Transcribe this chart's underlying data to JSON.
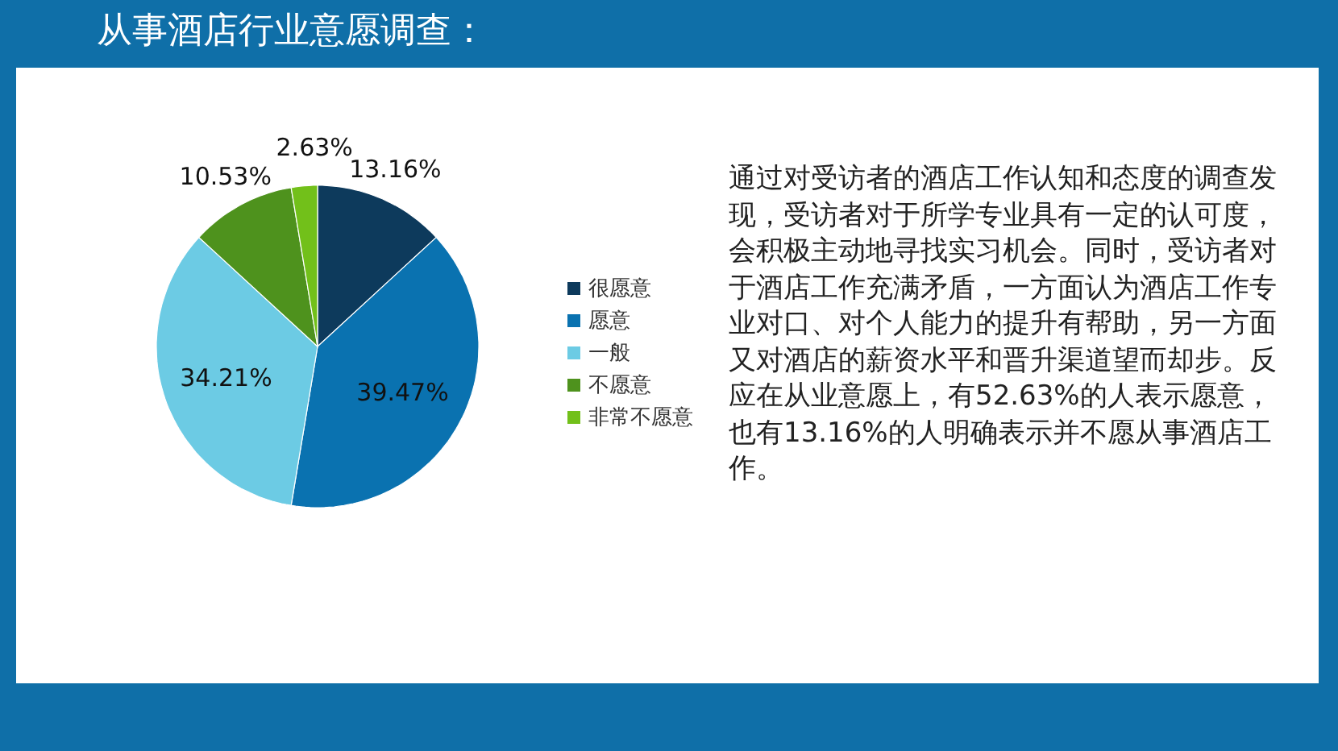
{
  "chart_data": {
    "type": "pie",
    "title": "从事酒店行业意愿调查：",
    "categories": [
      "很愿意",
      "愿意",
      "一般",
      "不愿意",
      "非常不愿意"
    ],
    "values": [
      13.16,
      39.47,
      34.21,
      10.53,
      2.63
    ],
    "colors": [
      "#0d3a5c",
      "#0a72b0",
      "#6ccbe4",
      "#4e921d",
      "#72c01a"
    ],
    "value_labels": [
      "13.16%",
      "39.47%",
      "34.21%",
      "10.53%",
      "2.63%"
    ],
    "legend": "right",
    "annotations": [
      "通过对受访者的酒店工作认知和态度的调查发现，受访者对于所学专业具有一定的认可度，会积极主动地寻找实习机会。同时，受访者对于酒店工作充满矛盾，一方面认为酒店工作专业对口、对个人能力的提升有帮助，另一方面又对酒店的薪资水平和晋升渠道望而却步。反应在从业意愿上，有52.63%的人表示愿意，也有13.16%的人明确表示并不愿从事酒店工作。"
    ]
  }
}
